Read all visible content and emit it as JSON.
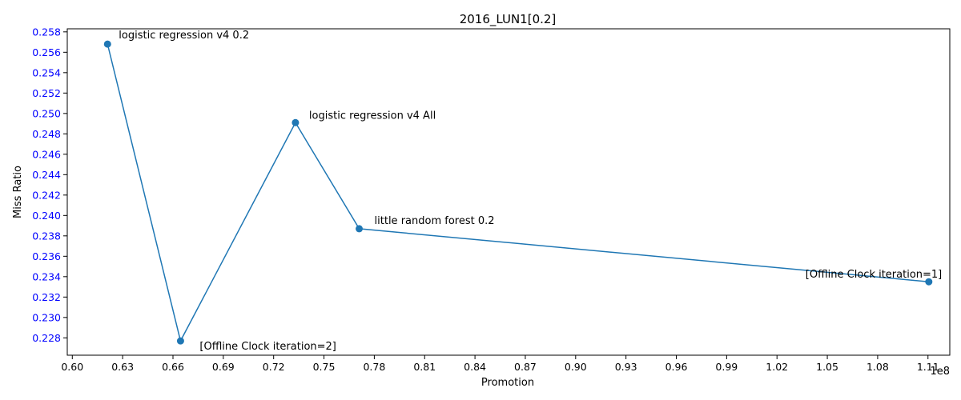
{
  "chart_data": {
    "type": "line",
    "title": "2016_LUN1[0.2]",
    "xlabel": "Promotion",
    "ylabel": "Miss Ratio",
    "x_offset_label": "1e8",
    "xlim": [
      0.597,
      1.123
    ],
    "ylim": [
      0.2263,
      0.2583
    ],
    "x_ticks": [
      "0.60",
      "0.63",
      "0.66",
      "0.69",
      "0.72",
      "0.75",
      "0.78",
      "0.81",
      "0.84",
      "0.87",
      "0.90",
      "0.93",
      "0.96",
      "0.99",
      "1.02",
      "1.05",
      "1.08",
      "1.11"
    ],
    "y_ticks": [
      "0.228",
      "0.230",
      "0.232",
      "0.234",
      "0.236",
      "0.238",
      "0.240",
      "0.242",
      "0.244",
      "0.246",
      "0.248",
      "0.250",
      "0.252",
      "0.254",
      "0.256",
      "0.258"
    ],
    "y_tick_color": "#0000ff",
    "line_color": "#1f77b4",
    "grid": false,
    "series": [
      {
        "x": [
          0.621,
          0.6645,
          0.733,
          0.771,
          1.1105
        ],
        "y": [
          0.2568,
          0.2277,
          0.2491,
          0.2387,
          0.2335
        ],
        "labels": [
          "logistic regression v4 0.2",
          "[Offline Clock iteration=2]",
          "logistic regression v4 All",
          "little random forest 0.2",
          "[Offline Clock iteration=1]"
        ]
      }
    ]
  }
}
